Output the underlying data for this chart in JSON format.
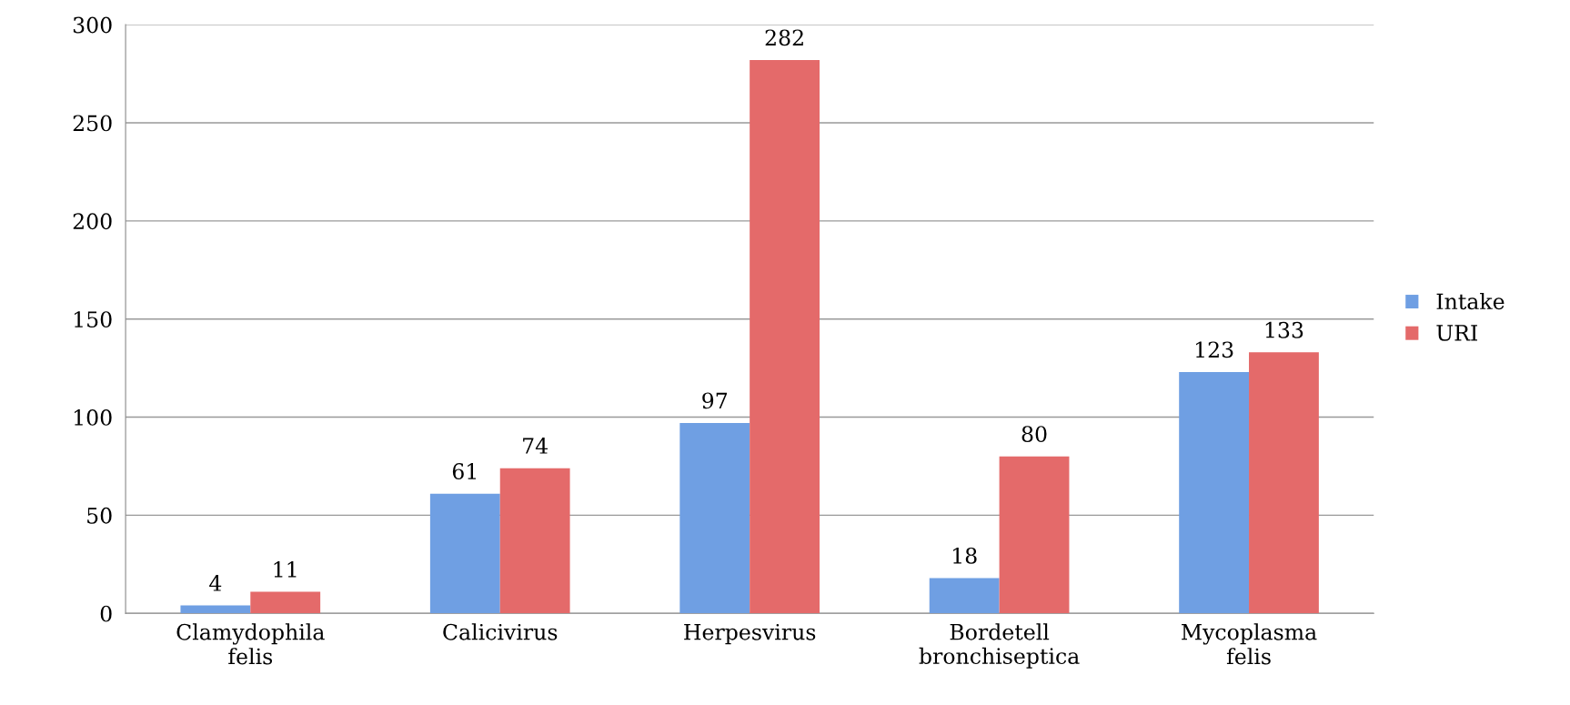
{
  "chart_data": {
    "type": "bar",
    "categories": [
      "Clamydophila\nfelis",
      "Calicivirus",
      "Herpesvirus",
      "Bordetell\nbronchiseptica",
      "Mycoplasma\nfelis"
    ],
    "series": [
      {
        "name": "Intake",
        "color": "#6f9fe3",
        "values": [
          4,
          61,
          97,
          18,
          123
        ]
      },
      {
        "name": "URI",
        "color": "#e46a6a",
        "values": [
          11,
          74,
          282,
          80,
          133
        ]
      }
    ],
    "ylim": [
      0,
      300
    ],
    "yticks": [
      0,
      50,
      100,
      150,
      200,
      250,
      300
    ],
    "grid": "y",
    "legend": "right",
    "data_labels": true
  }
}
